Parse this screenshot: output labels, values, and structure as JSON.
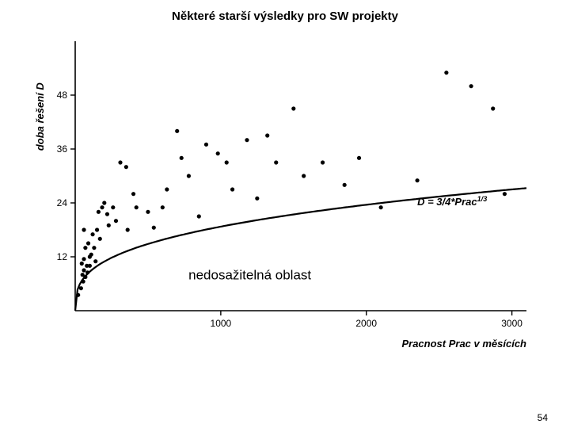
{
  "title": "Některé starší výsledky pro SW projekty",
  "page_number": "54",
  "chart": {
    "type": "scatter-with-curve",
    "background_color": "#ffffff",
    "axis_color": "#000000",
    "point_color": "#000000",
    "curve_color": "#000000",
    "tick_color": "#000000",
    "label_color": "#000000",
    "title_fontsize": 15,
    "axis_label_fontsize": 13,
    "tick_label_fontsize": 12,
    "formula_fontsize": 13,
    "region_label_fontsize": 17,
    "curve_width": 2.2,
    "axis_width": 1.6,
    "point_radius": 2.6,
    "xlim": [
      0,
      3100
    ],
    "ylim": [
      0,
      60
    ],
    "xticks": [
      1000,
      2000,
      3000
    ],
    "yticks": [
      12,
      24,
      36,
      48
    ],
    "xlabel": "Pracnost Prac v měsících",
    "ylabel": "doba řešení D",
    "formula": "D = 3/4*Prac",
    "formula_exp": "1/3",
    "region_label": "nedosažitelná oblast",
    "points": [
      [
        20,
        3.5
      ],
      [
        40,
        5
      ],
      [
        55,
        6.5
      ],
      [
        50,
        8
      ],
      [
        60,
        9
      ],
      [
        70,
        7.5
      ],
      [
        45,
        10.5
      ],
      [
        60,
        11.5
      ],
      [
        80,
        10
      ],
      [
        85,
        8.5
      ],
      [
        100,
        10
      ],
      [
        100,
        12
      ],
      [
        70,
        14
      ],
      [
        90,
        15
      ],
      [
        130,
        14
      ],
      [
        120,
        17
      ],
      [
        60,
        18
      ],
      [
        110,
        12.5
      ],
      [
        140,
        11
      ],
      [
        150,
        18
      ],
      [
        160,
        22
      ],
      [
        170,
        16
      ],
      [
        185,
        23
      ],
      [
        200,
        24
      ],
      [
        220,
        21.5
      ],
      [
        230,
        19
      ],
      [
        260,
        23
      ],
      [
        280,
        20
      ],
      [
        310,
        33
      ],
      [
        350,
        32
      ],
      [
        360,
        18
      ],
      [
        400,
        26
      ],
      [
        420,
        23
      ],
      [
        500,
        22
      ],
      [
        540,
        18.5
      ],
      [
        600,
        23
      ],
      [
        630,
        27
      ],
      [
        700,
        40
      ],
      [
        730,
        34
      ],
      [
        780,
        30
      ],
      [
        850,
        21
      ],
      [
        900,
        37
      ],
      [
        980,
        35
      ],
      [
        1040,
        33
      ],
      [
        1080,
        27
      ],
      [
        1180,
        38
      ],
      [
        1250,
        25
      ],
      [
        1320,
        39
      ],
      [
        1380,
        33
      ],
      [
        1500,
        45
      ],
      [
        1570,
        30
      ],
      [
        1700,
        33
      ],
      [
        1850,
        28
      ],
      [
        1950,
        34
      ],
      [
        2100,
        23
      ],
      [
        2350,
        29
      ],
      [
        2550,
        53
      ],
      [
        2720,
        50
      ],
      [
        2870,
        45
      ],
      [
        2950,
        26
      ]
    ],
    "curve_formula_note": "D = 3/4 * Prac^(1/3) over x in [0, 3100]"
  }
}
